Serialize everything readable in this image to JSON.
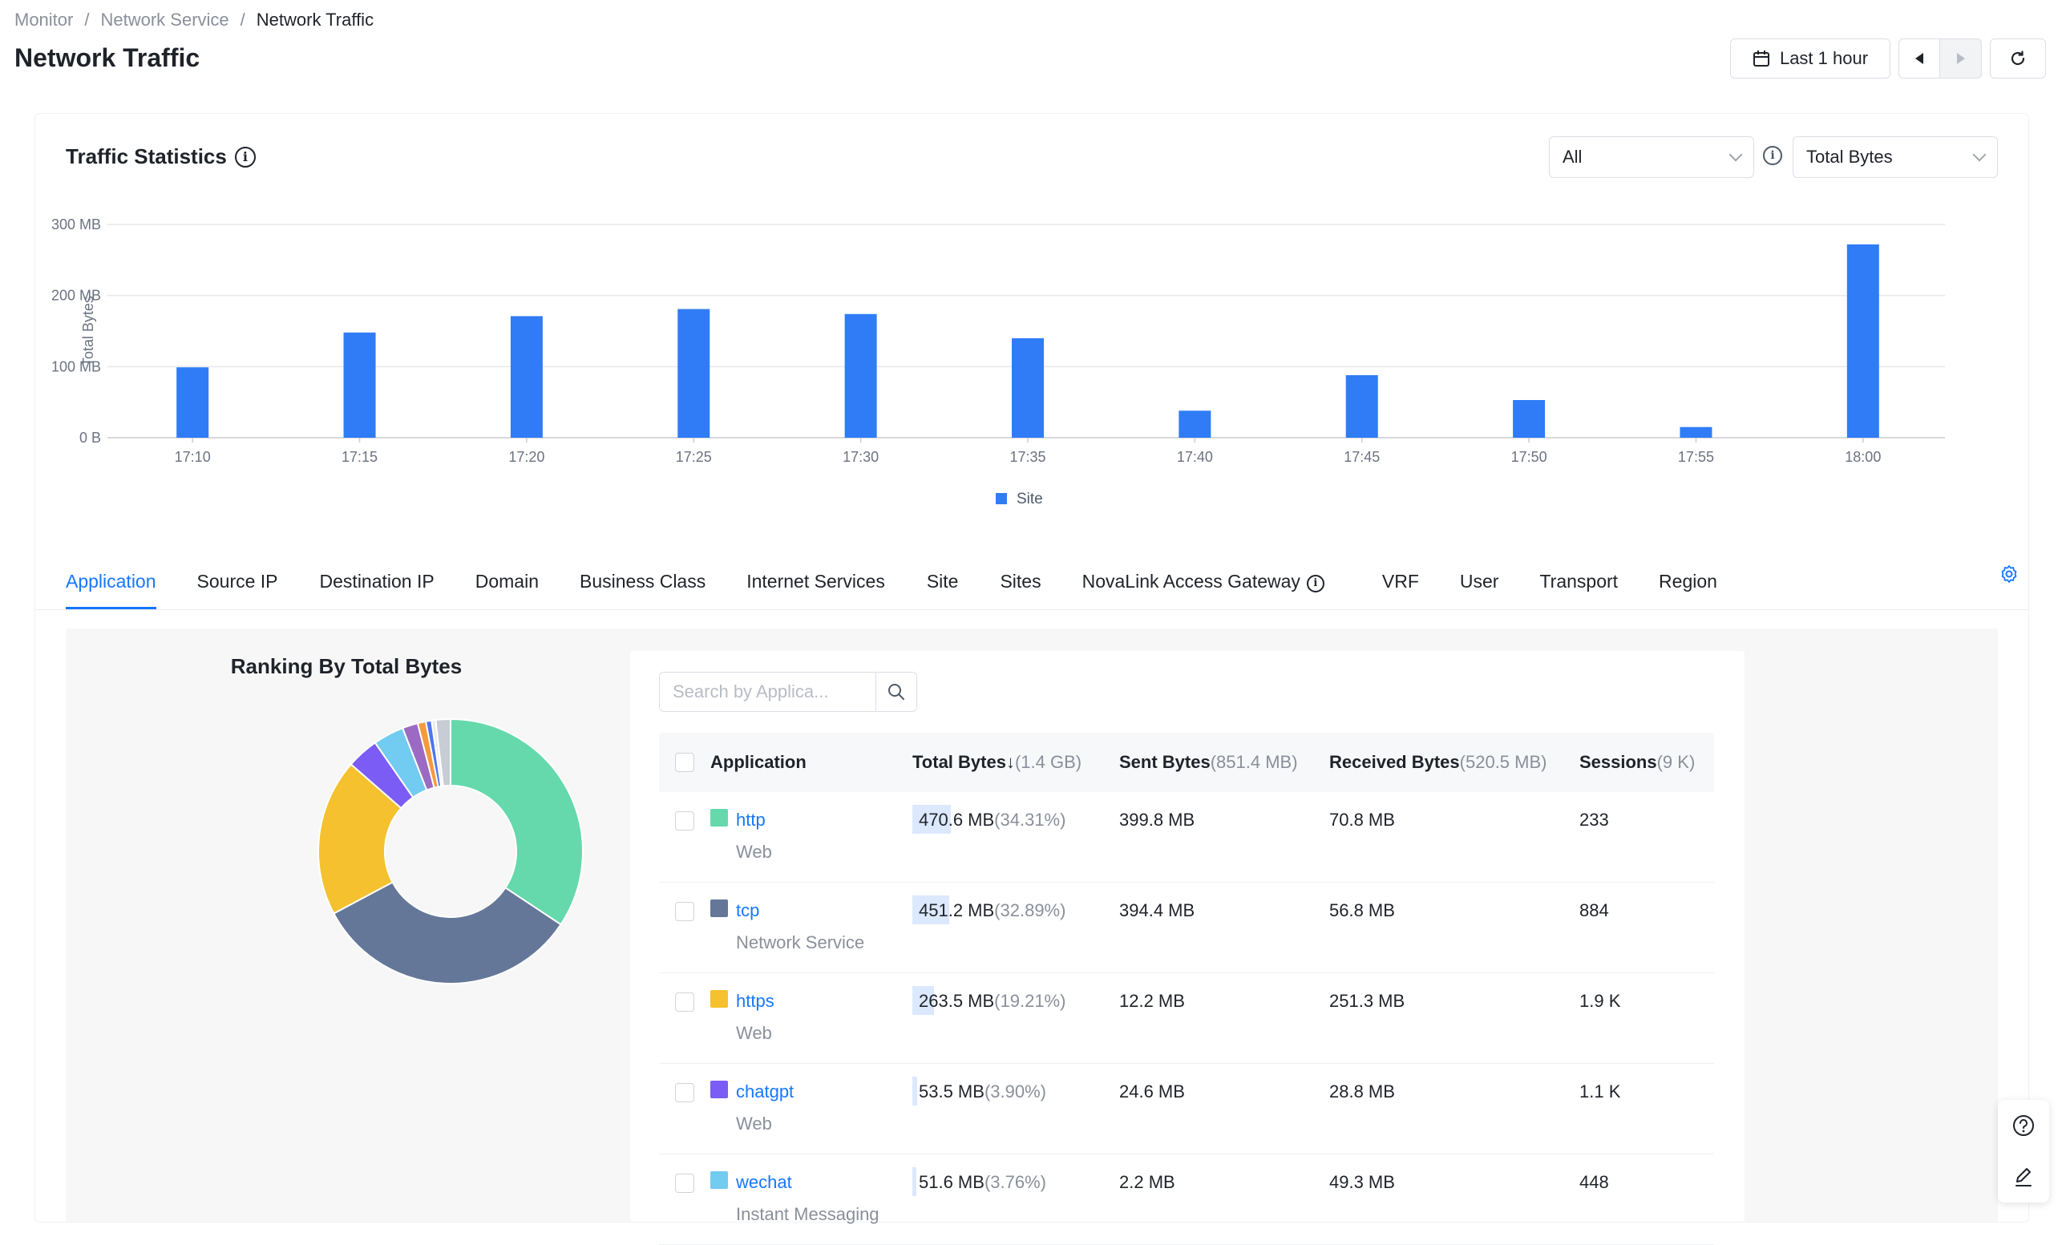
{
  "breadcrumb": [
    "Monitor",
    "Network Service",
    "Network Traffic"
  ],
  "page_title": "Network Traffic",
  "header": {
    "time_range": "Last 1 hour"
  },
  "traffic": {
    "title": "Traffic Statistics",
    "filter_select": "All",
    "metric_select": "Total Bytes"
  },
  "chart_data": {
    "type": "bar",
    "categories": [
      "17:10",
      "17:15",
      "17:20",
      "17:25",
      "17:30",
      "17:35",
      "17:40",
      "17:45",
      "17:50",
      "17:55",
      "18:00"
    ],
    "series": [
      {
        "name": "Site",
        "values": [
          99,
          148,
          171,
          181,
          174,
          140,
          38,
          88,
          53,
          15,
          272
        ],
        "color": "#2f7cf6"
      }
    ],
    "ylabel": "Total Bytes",
    "ylim": [
      0,
      300
    ],
    "y_ticks": [
      "0 B",
      "100 MB",
      "200 MB",
      "300 MB"
    ],
    "grid": true,
    "legend": "bottom"
  },
  "tabs": [
    "Application",
    "Source IP",
    "Destination IP",
    "Domain",
    "Business Class",
    "Internet Services",
    "Site",
    "Sites",
    "NovaLink Access Gateway",
    "VRF",
    "User",
    "Transport",
    "Region"
  ],
  "ranking": {
    "title": "Ranking By Total Bytes",
    "donut": [
      {
        "value": 34.31,
        "color": "#65d9ab"
      },
      {
        "value": 32.89,
        "color": "#647799"
      },
      {
        "value": 19.21,
        "color": "#f5c12e"
      },
      {
        "value": 3.9,
        "color": "#7b5cf5"
      },
      {
        "value": 3.76,
        "color": "#72cbf0"
      },
      {
        "value": 1.9,
        "color": "#9b6bc4"
      },
      {
        "value": 1.0,
        "color": "#f59a3c"
      },
      {
        "value": 0.7,
        "color": "#4f74f0"
      },
      {
        "value": 0.5,
        "color": "#ebebeb"
      },
      {
        "value": 1.8,
        "color": "#c8ccd4"
      }
    ]
  },
  "search": {
    "placeholder": "Search by Applica..."
  },
  "table": {
    "headers": {
      "application": "Application",
      "total": "Total Bytes",
      "total_sub": "(1.4 GB)",
      "sent": "Sent Bytes",
      "sent_sub": "(851.4 MB)",
      "received": "Received Bytes",
      "received_sub": "(520.5 MB)",
      "sessions": "Sessions",
      "sessions_sub": "(9 K)"
    },
    "rows": [
      {
        "name": "http",
        "category": "Web",
        "color": "#65d9ab",
        "total": "470.6 MB",
        "pct": "(34.31%)",
        "share": 0.3431,
        "sent": "399.8 MB",
        "received": "70.8 MB",
        "sessions": "233"
      },
      {
        "name": "tcp",
        "category": "Network Service",
        "color": "#647799",
        "total": "451.2 MB",
        "pct": "(32.89%)",
        "share": 0.3289,
        "sent": "394.4 MB",
        "received": "56.8 MB",
        "sessions": "884"
      },
      {
        "name": "https",
        "category": "Web",
        "color": "#f5c12e",
        "total": "263.5 MB",
        "pct": "(19.21%)",
        "share": 0.1921,
        "sent": "12.2 MB",
        "received": "251.3 MB",
        "sessions": "1.9 K"
      },
      {
        "name": "chatgpt",
        "category": "Web",
        "color": "#7b5cf5",
        "total": "53.5 MB",
        "pct": "(3.90%)",
        "share": 0.039,
        "sent": "24.6 MB",
        "received": "28.8 MB",
        "sessions": "1.1 K"
      },
      {
        "name": "wechat",
        "category": "Instant Messaging",
        "color": "#72cbf0",
        "total": "51.6 MB",
        "pct": "(3.76%)",
        "share": 0.0376,
        "sent": "2.2 MB",
        "received": "49.3 MB",
        "sessions": "448"
      }
    ]
  }
}
